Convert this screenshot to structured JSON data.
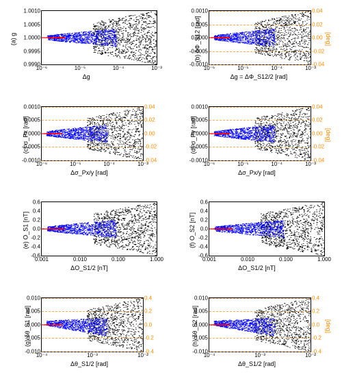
{
  "global": {
    "colors": {
      "red": "#ff0000",
      "blue": "#0000ff",
      "black": "#000000",
      "orange": "#ff8c00",
      "axis": "#000000",
      "bg": "#ffffff"
    },
    "font_family": "Arial",
    "tick_fontsize": 8,
    "label_fontsize": 9,
    "marker_size": 0.6
  },
  "panels": [
    {
      "id": "a",
      "row": 0,
      "col": 0,
      "ylabel_left": "(a) g",
      "xlabel": "Δg",
      "xscale": "log",
      "xlim": [
        1e-06,
        0.001
      ],
      "xticks": [
        1e-06,
        1e-05,
        0.0001,
        0.001
      ],
      "xtick_labels": [
        "10⁻⁶",
        "10⁻⁵",
        "10⁻⁴",
        "10⁻³"
      ],
      "ylim": [
        0.999,
        1.001
      ],
      "yticks": [
        0.999,
        0.9995,
        1.0,
        1.0005,
        1.001
      ],
      "ytick_labels": [
        "0.9990",
        "0.9995",
        "1.0000",
        "1.0005",
        "1.0010"
      ],
      "has_right_axis": false,
      "scatter_pattern": "fan"
    },
    {
      "id": "b",
      "row": 0,
      "col": 1,
      "ylabel_left": "(b) δΦ_S12 [rad]",
      "ylabel_right": "[deg]",
      "xlabel": "Δg = ΔΦ_S12/2 [rad]",
      "xscale": "log",
      "xlim": [
        1e-06,
        0.001
      ],
      "xticks": [
        1e-06,
        1e-05,
        0.0001,
        0.001
      ],
      "xtick_labels": [
        "10⁻⁶",
        "10⁻⁵",
        "10⁻⁴",
        "10⁻³"
      ],
      "ylim": [
        -0.001,
        0.001
      ],
      "yticks": [
        -0.001,
        -0.0005,
        0.0,
        0.0005,
        0.001
      ],
      "ytick_labels": [
        "-0.0010",
        "-0.0005",
        "0.0000",
        "0.0005",
        "0.0010"
      ],
      "right_ticks": [
        -0.04,
        -0.02,
        0.0,
        0.02,
        0.04
      ],
      "right_tick_labels": [
        "-0.04",
        "-0.02",
        "0.00",
        "0.02",
        "0.04"
      ],
      "has_right_axis": true,
      "hlines_orange": [
        -0.04,
        -0.02,
        0.02,
        0.04
      ],
      "scatter_pattern": "fan"
    },
    {
      "id": "c",
      "row": 1,
      "col": 0,
      "ylabel_left": "(c) σ_Px [rad]",
      "xlabel": "Δσ_Px/y [rad]",
      "xscale": "log",
      "xlim": [
        1e-06,
        0.001
      ],
      "xticks": [
        1e-06,
        1e-05,
        0.0001,
        0.001
      ],
      "xtick_labels": [
        "10⁻⁶",
        "10⁻⁵",
        "10⁻⁴",
        "10⁻³"
      ],
      "ylim": [
        -0.001,
        0.001
      ],
      "yticks": [
        -0.001,
        -0.0005,
        0.0,
        0.0005,
        0.001
      ],
      "ytick_labels": [
        "-0.0010",
        "-0.0005",
        "0.0000",
        "0.0005",
        "0.0010"
      ],
      "right_ticks": [
        -0.04,
        -0.02,
        0.0,
        0.02,
        0.04
      ],
      "right_tick_labels": [
        "-0.04",
        "-0.02",
        "0.00",
        "0.02",
        "0.04"
      ],
      "has_right_axis": true,
      "hlines_orange": [
        -0.04,
        -0.02,
        0.02,
        0.04
      ],
      "scatter_pattern": "fan"
    },
    {
      "id": "d",
      "row": 1,
      "col": 1,
      "ylabel_left": "(d) σ_Py [rad]",
      "ylabel_right": "[deg]",
      "xlabel": "Δσ_Px/y [rad]",
      "xscale": "log",
      "xlim": [
        1e-06,
        0.001
      ],
      "xticks": [
        1e-06,
        1e-05,
        0.0001,
        0.001
      ],
      "xtick_labels": [
        "10⁻⁶",
        "10⁻⁵",
        "10⁻⁴",
        "10⁻³"
      ],
      "ylim": [
        -0.001,
        0.001
      ],
      "yticks": [
        -0.001,
        -0.0005,
        0.0,
        0.0005,
        0.001
      ],
      "ytick_labels": [
        "-0.0010",
        "-0.0005",
        "0.0000",
        "0.0005",
        "0.0010"
      ],
      "right_ticks": [
        -0.04,
        -0.02,
        0.0,
        0.02,
        0.04
      ],
      "right_tick_labels": [
        "-0.04",
        "-0.02",
        "0.00",
        "0.02",
        "0.04"
      ],
      "has_right_axis": true,
      "hlines_orange": [
        -0.04,
        -0.02,
        0.02,
        0.04
      ],
      "scatter_pattern": "fan"
    },
    {
      "id": "e",
      "row": 2,
      "col": 0,
      "ylabel_left": "(e) O_S1 [nT]",
      "xlabel": "ΔO_S1/2 [nT]",
      "xscale": "log",
      "xlim": [
        0.001,
        1.0
      ],
      "xticks": [
        0.001,
        0.01,
        0.1,
        1.0
      ],
      "xtick_labels": [
        "0.001",
        "0.010",
        "0.100",
        "1.000"
      ],
      "ylim": [
        -0.6,
        0.6
      ],
      "yticks": [
        -0.6,
        -0.4,
        -0.2,
        0.0,
        0.2,
        0.4,
        0.6
      ],
      "ytick_labels": [
        "-0.6",
        "-0.4",
        "-0.2",
        "0.0",
        "0.2",
        "0.4",
        "0.6"
      ],
      "has_right_axis": false,
      "scatter_pattern": "fan"
    },
    {
      "id": "f",
      "row": 2,
      "col": 1,
      "ylabel_left": "(f) O_S2 [nT]",
      "xlabel": "ΔO_S1/2 [nT]",
      "xscale": "log",
      "xlim": [
        0.001,
        1.0
      ],
      "xticks": [
        0.001,
        0.01,
        0.1,
        1.0
      ],
      "xtick_labels": [
        "0.001",
        "0.010",
        "0.100",
        "1.000"
      ],
      "ylim": [
        -0.6,
        0.6
      ],
      "yticks": [
        -0.6,
        -0.4,
        -0.2,
        0.0,
        0.2,
        0.4,
        0.6
      ],
      "ytick_labels": [
        "-0.6",
        "-0.4",
        "-0.2",
        "0.0",
        "0.2",
        "0.4",
        "0.6"
      ],
      "has_right_axis": false,
      "scatter_pattern": "fan"
    },
    {
      "id": "g",
      "row": 3,
      "col": 0,
      "ylabel_left": "(g) δθ_S1 [rad]",
      "xlabel": "Δθ_S1/2 [rad]",
      "xscale": "log",
      "xlim": [
        0.0001,
        0.01
      ],
      "xticks": [
        0.0001,
        0.001,
        0.01
      ],
      "xtick_labels": [
        "10⁻⁴",
        "10⁻³",
        "10⁻²"
      ],
      "ylim": [
        -0.01,
        0.01
      ],
      "yticks": [
        -0.01,
        -0.005,
        0.0,
        0.005,
        0.01
      ],
      "ytick_labels": [
        "-0.010",
        "-0.005",
        "0.000",
        "0.005",
        "0.010"
      ],
      "right_ticks": [
        -0.4,
        -0.2,
        0.0,
        0.2,
        0.4
      ],
      "right_tick_labels": [
        "-0.4",
        "-0.2",
        "0.0",
        "0.2",
        "0.4"
      ],
      "has_right_axis": true,
      "hlines_orange": [
        -0.4,
        -0.2,
        0.2,
        0.4
      ],
      "scatter_pattern": "fan_skew"
    },
    {
      "id": "h",
      "row": 3,
      "col": 1,
      "ylabel_left": "(h) δθ_S2 [rad]",
      "ylabel_right": "[deg]",
      "xlabel": "Δθ_S1/2 [rad]",
      "xscale": "log",
      "xlim": [
        0.0001,
        0.01
      ],
      "xticks": [
        0.0001,
        0.001,
        0.01
      ],
      "xtick_labels": [
        "10⁻⁴",
        "10⁻³",
        "10⁻²"
      ],
      "ylim": [
        -0.01,
        0.01
      ],
      "yticks": [
        -0.01,
        -0.005,
        0.0,
        0.005,
        0.01
      ],
      "ytick_labels": [
        "-0.010",
        "-0.005",
        "0.000",
        "0.005",
        "0.010"
      ],
      "right_ticks": [
        -0.4,
        -0.2,
        0.0,
        0.2,
        0.4
      ],
      "right_tick_labels": [
        "-0.4",
        "-0.2",
        "0.0",
        "0.2",
        "0.4"
      ],
      "has_right_axis": true,
      "hlines_orange": [
        -0.4,
        -0.2,
        0.2,
        0.4
      ],
      "scatter_pattern": "fan_skew"
    }
  ],
  "scatter_groups": {
    "red": {
      "x_frac_range": [
        0.0,
        0.2
      ],
      "y_spread": 0.04,
      "n": 200,
      "color": "#ff0000"
    },
    "blue": {
      "x_frac_range": [
        0.05,
        0.65
      ],
      "y_spread": 0.45,
      "n": 900,
      "color": "#0000ff"
    },
    "black": {
      "x_frac_range": [
        0.45,
        1.0
      ],
      "y_spread": 1.0,
      "n": 900,
      "color": "#000000"
    }
  }
}
